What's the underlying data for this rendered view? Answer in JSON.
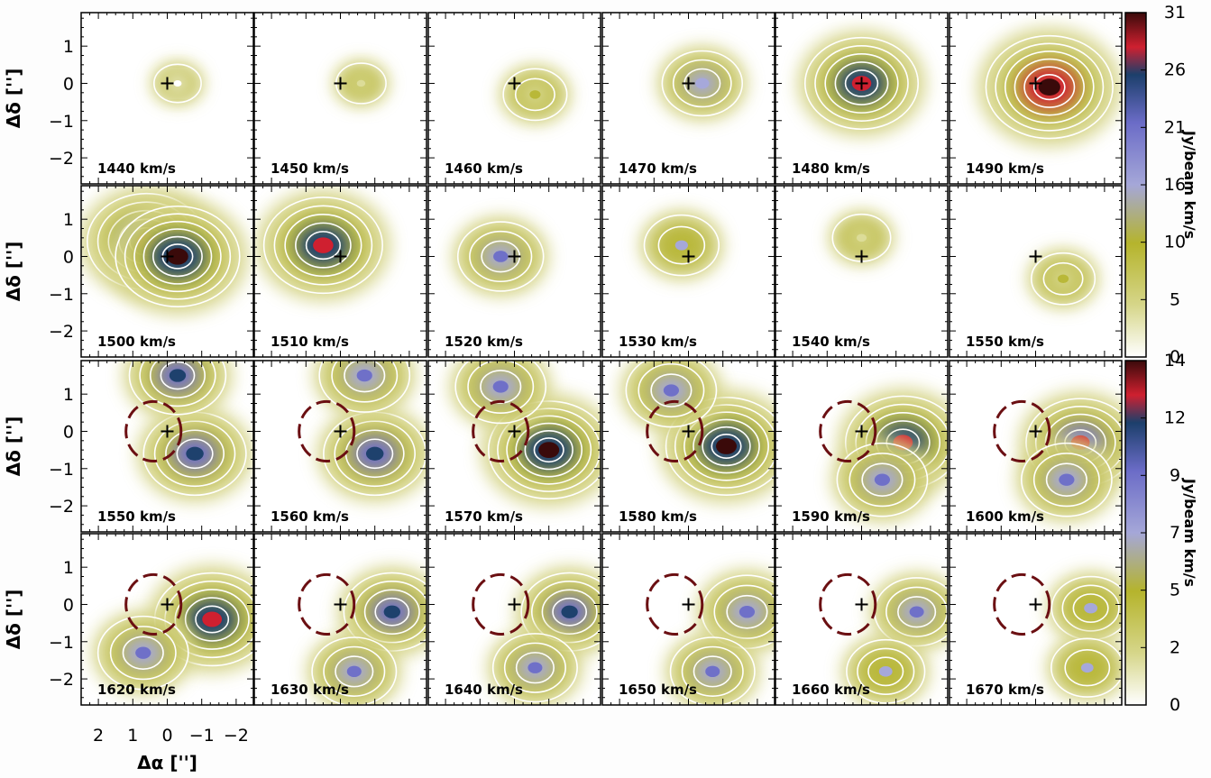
{
  "chart_data": [
    {
      "type": "heatmap",
      "title": "",
      "xlabel": "Δα ['']",
      "ylabel": "Δδ ['']",
      "x_ticks": [
        "2",
        "1",
        "0",
        "−1",
        "−2"
      ],
      "y_ticks": [
        "1",
        "0",
        "−1",
        "−2"
      ],
      "xlim": [
        2.5,
        -2.5
      ],
      "ylim": [
        -2.7,
        1.9
      ],
      "colorbar": {
        "label": "Jy/beam km/s",
        "ticks": [
          "0",
          "5",
          "10",
          "16",
          "21",
          "26",
          "31"
        ],
        "vmin": 0,
        "vmax": 31
      },
      "panels": [
        {
          "label": "1440 km/s",
          "peak": 2,
          "features": [
            {
              "x": -0.3,
              "y": 0.0,
              "v": 2
            }
          ]
        },
        {
          "label": "1450 km/s",
          "peak": 3,
          "features": [
            {
              "x": -0.6,
              "y": 0.0,
              "v": 3
            }
          ]
        },
        {
          "label": "1460 km/s",
          "peak": 8,
          "features": [
            {
              "x": -0.6,
              "y": -0.3,
              "v": 8
            }
          ]
        },
        {
          "label": "1470 km/s",
          "peak": 14,
          "features": [
            {
              "x": -0.4,
              "y": 0.0,
              "v": 14
            }
          ]
        },
        {
          "label": "1480 km/s",
          "peak": 26,
          "features": [
            {
              "x": 0.0,
              "y": 0.0,
              "v": 26
            }
          ]
        },
        {
          "label": "1490 km/s",
          "peak": 31,
          "features": [
            {
              "x": -0.4,
              "y": -0.1,
              "v": 31
            }
          ]
        },
        {
          "label": "1500 km/s",
          "peak": 30,
          "features": [
            {
              "x": 0.6,
              "y": 0.4,
              "v": 28
            },
            {
              "x": -0.3,
              "y": 0.0,
              "v": 30
            }
          ]
        },
        {
          "label": "1510 km/s",
          "peak": 28,
          "features": [
            {
              "x": 0.5,
              "y": 0.3,
              "v": 28
            }
          ]
        },
        {
          "label": "1520 km/s",
          "peak": 16,
          "features": [
            {
              "x": 0.4,
              "y": 0.0,
              "v": 16
            }
          ]
        },
        {
          "label": "1530 km/s",
          "peak": 12,
          "features": [
            {
              "x": 0.2,
              "y": 0.3,
              "v": 12
            }
          ]
        },
        {
          "label": "1540 km/s",
          "peak": 6,
          "features": [
            {
              "x": 0.0,
              "y": 0.5,
              "v": 6
            }
          ]
        },
        {
          "label": "1550 km/s",
          "peak": 8,
          "features": [
            {
              "x": -0.8,
              "y": -0.6,
              "v": 8
            }
          ]
        }
      ]
    },
    {
      "type": "heatmap",
      "title": "",
      "xlabel": "Δα ['']",
      "ylabel": "Δδ ['']",
      "x_ticks": [
        "2",
        "1",
        "0",
        "−1",
        "−2"
      ],
      "y_ticks": [
        "1",
        "0",
        "−1",
        "−2"
      ],
      "xlim": [
        2.5,
        -2.5
      ],
      "ylim": [
        -2.7,
        1.9
      ],
      "colorbar": {
        "label": "Jy/beam km/s",
        "ticks": [
          "0",
          "2",
          "5",
          "7",
          "9",
          "12",
          "14"
        ],
        "vmin": 0,
        "vmax": 14
      },
      "ring": {
        "center": [
          0.4,
          0.0
        ],
        "radius_arcsec": 0.8,
        "color": "#6b0f12",
        "style": "dashed"
      },
      "panels": [
        {
          "label": "1550 km/s",
          "peak": 10,
          "features": [
            {
              "x": -0.8,
              "y": -0.6,
              "v": 10
            },
            {
              "x": -0.3,
              "y": 1.5,
              "v": 9
            }
          ]
        },
        {
          "label": "1560 km/s",
          "peak": 10,
          "features": [
            {
              "x": -1.0,
              "y": -0.6,
              "v": 10
            },
            {
              "x": -0.7,
              "y": 1.5,
              "v": 8
            }
          ]
        },
        {
          "label": "1570 km/s",
          "peak": 13,
          "features": [
            {
              "x": -1.0,
              "y": -0.5,
              "v": 13
            },
            {
              "x": 0.4,
              "y": 1.2,
              "v": 8
            }
          ]
        },
        {
          "label": "1580 km/s",
          "peak": 13,
          "features": [
            {
              "x": -1.1,
              "y": -0.4,
              "v": 13
            },
            {
              "x": 0.5,
              "y": 1.1,
              "v": 8
            }
          ]
        },
        {
          "label": "1590 km/s",
          "peak": 12,
          "features": [
            {
              "x": -1.2,
              "y": -0.3,
              "v": 12
            },
            {
              "x": -0.6,
              "y": -1.3,
              "v": 8
            }
          ]
        },
        {
          "label": "1600 km/s",
          "peak": 11,
          "features": [
            {
              "x": -1.3,
              "y": -0.3,
              "v": 11
            },
            {
              "x": -0.9,
              "y": -1.3,
              "v": 8
            }
          ]
        },
        {
          "label": "1620 km/s",
          "peak": 12,
          "features": [
            {
              "x": -1.3,
              "y": -0.4,
              "v": 12
            },
            {
              "x": 0.7,
              "y": -1.3,
              "v": 8
            }
          ]
        },
        {
          "label": "1630 km/s",
          "peak": 9,
          "features": [
            {
              "x": -1.5,
              "y": -0.2,
              "v": 9
            },
            {
              "x": -0.4,
              "y": -1.8,
              "v": 7
            }
          ]
        },
        {
          "label": "1640 km/s",
          "peak": 9,
          "features": [
            {
              "x": -1.6,
              "y": -0.2,
              "v": 9
            },
            {
              "x": -0.6,
              "y": -1.7,
              "v": 7
            }
          ]
        },
        {
          "label": "1650 km/s",
          "peak": 8,
          "features": [
            {
              "x": -1.7,
              "y": -0.2,
              "v": 8
            },
            {
              "x": -0.7,
              "y": -1.8,
              "v": 7
            }
          ]
        },
        {
          "label": "1660 km/s",
          "peak": 7,
          "features": [
            {
              "x": -1.6,
              "y": -0.2,
              "v": 7
            },
            {
              "x": -0.7,
              "y": -1.8,
              "v": 6
            }
          ]
        },
        {
          "label": "1670 km/s",
          "peak": 6,
          "features": [
            {
              "x": -1.6,
              "y": -0.1,
              "v": 6
            },
            {
              "x": -1.5,
              "y": -1.7,
              "v": 5
            }
          ]
        }
      ]
    }
  ]
}
